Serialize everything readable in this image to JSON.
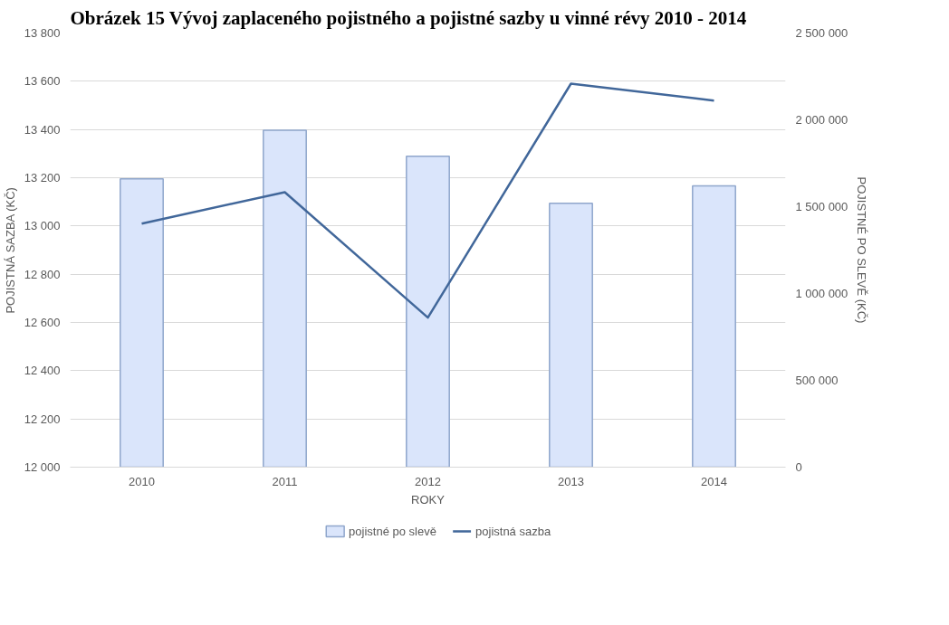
{
  "chart_data": {
    "type": "bar",
    "title": "Obrázek 15 Vývoj zaplaceného pojistného a pojistné sazby u vinné révy 2010 - 2014",
    "xlabel": "ROKY",
    "ylabel": "POJISTNÁ SAZBA (KČ)",
    "y2label": "POJISTNÉ PO SLEVĚ (KČ)",
    "categories": [
      "2010",
      "2011",
      "2012",
      "2013",
      "2014"
    ],
    "series": [
      {
        "name": "pojistné po slevě",
        "axis": "y2",
        "color": "#dae5fb",
        "values": [
          1660000,
          1940000,
          1790000,
          1520000,
          1620000
        ]
      },
      {
        "name": "pojistná sazba",
        "type": "line",
        "color": "#41679a",
        "values": [
          13010,
          13140,
          12620,
          13590,
          13520
        ]
      }
    ],
    "ylim": [
      12000,
      13800
    ],
    "yticks": [
      {
        "value": 12000,
        "label": "12 000"
      },
      {
        "value": 12200,
        "label": "12 200"
      },
      {
        "value": 12400,
        "label": "12 400"
      },
      {
        "value": 12600,
        "label": "12 600"
      },
      {
        "value": 12800,
        "label": "12 800"
      },
      {
        "value": 13000,
        "label": "13 000"
      },
      {
        "value": 13200,
        "label": "13 200"
      },
      {
        "value": 13400,
        "label": "13 400"
      },
      {
        "value": 13600,
        "label": "13 600"
      },
      {
        "value": 13800,
        "label": "13 800"
      }
    ],
    "y2lim": [
      0,
      2500000
    ],
    "y2ticks": [
      {
        "value": 0,
        "label": "0"
      },
      {
        "value": 500000,
        "label": "500 000"
      },
      {
        "value": 1000000,
        "label": "1 000 000"
      },
      {
        "value": 1500000,
        "label": "1 500 000"
      },
      {
        "value": 2000000,
        "label": "2 000 000"
      },
      {
        "value": 2500000,
        "label": "2 500 000"
      }
    ],
    "grid": "y",
    "legend": "bottom"
  }
}
